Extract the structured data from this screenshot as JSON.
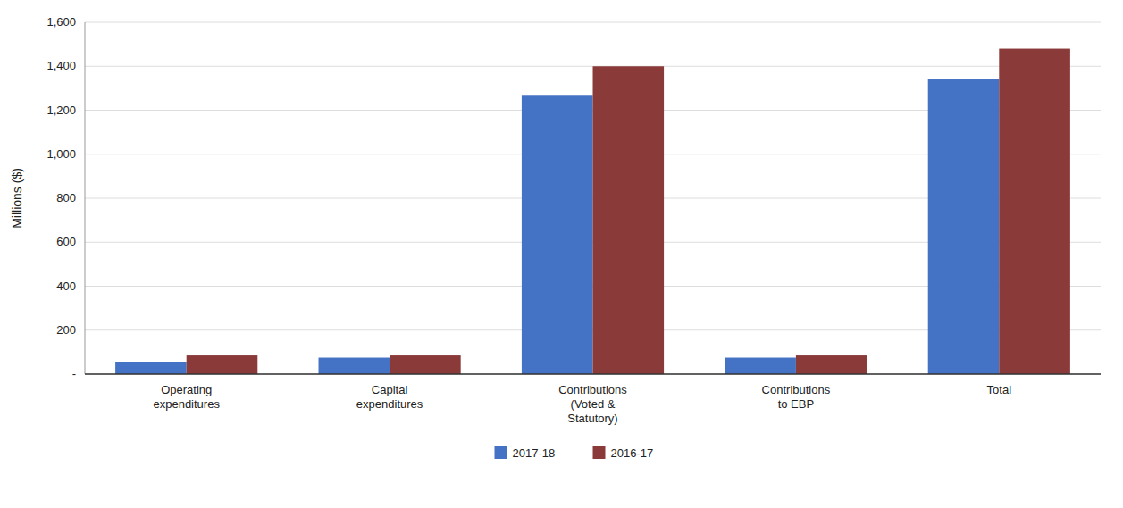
{
  "chart_data": {
    "type": "bar",
    "categories": [
      "Operating\nexpenditures",
      "Capital\nexpenditures",
      "Contributions\n(Voted &\nStatutory)",
      "Contributions\nto EBP",
      "Total"
    ],
    "series": [
      {
        "name": "2017-18",
        "color": "#4472C4",
        "values": [
          55,
          75,
          1270,
          75,
          1340
        ]
      },
      {
        "name": "2016-17",
        "color": "#8B3A3A",
        "values": [
          85,
          85,
          1400,
          85,
          1480
        ]
      }
    ],
    "ylabel": "Millions ($)",
    "ylim": [
      0,
      1600
    ],
    "yticks": [
      {
        "value": 0,
        "label": "-"
      },
      200,
      400,
      600,
      800,
      {
        "value": 1000,
        "label": "1,000"
      },
      {
        "value": 1200,
        "label": "1,200"
      },
      {
        "value": 1400,
        "label": "1,400"
      },
      {
        "value": 1600,
        "label": "1,600"
      }
    ],
    "grid": true,
    "legend": "bottom"
  }
}
